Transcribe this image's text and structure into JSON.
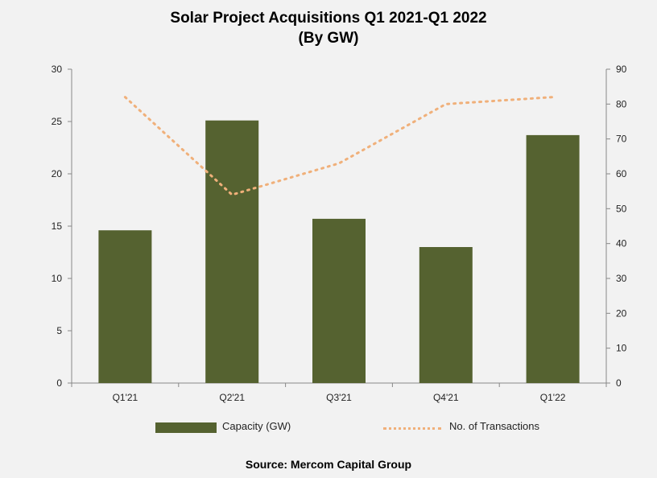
{
  "chart_data": {
    "type": "bar",
    "title": "Solar Project Acquisitions Q1 2021-Q1 2022",
    "subtitle": "(By GW)",
    "categories": [
      "Q1'21",
      "Q2'21",
      "Q3'21",
      "Q4'21",
      "Q1'22"
    ],
    "series": [
      {
        "name": "Capacity (GW)",
        "type": "bar",
        "axis": "left",
        "color": "#556230",
        "values": [
          14.6,
          25.1,
          15.7,
          13.0,
          23.7
        ]
      },
      {
        "name": "No. of Transactions",
        "type": "line",
        "style": "dotted",
        "axis": "right",
        "color": "#f0b07a",
        "values": [
          82,
          54,
          63,
          80,
          82
        ]
      }
    ],
    "ylim_left": [
      0,
      30
    ],
    "yticks_left": [
      0,
      5,
      10,
      15,
      20,
      25,
      30
    ],
    "ylim_right": [
      0,
      90
    ],
    "yticks_right": [
      0,
      10,
      20,
      30,
      40,
      50,
      60,
      70,
      80,
      90
    ],
    "grid": false,
    "legend_placement": "bottom",
    "source": "Source: Mercom Capital Group"
  }
}
